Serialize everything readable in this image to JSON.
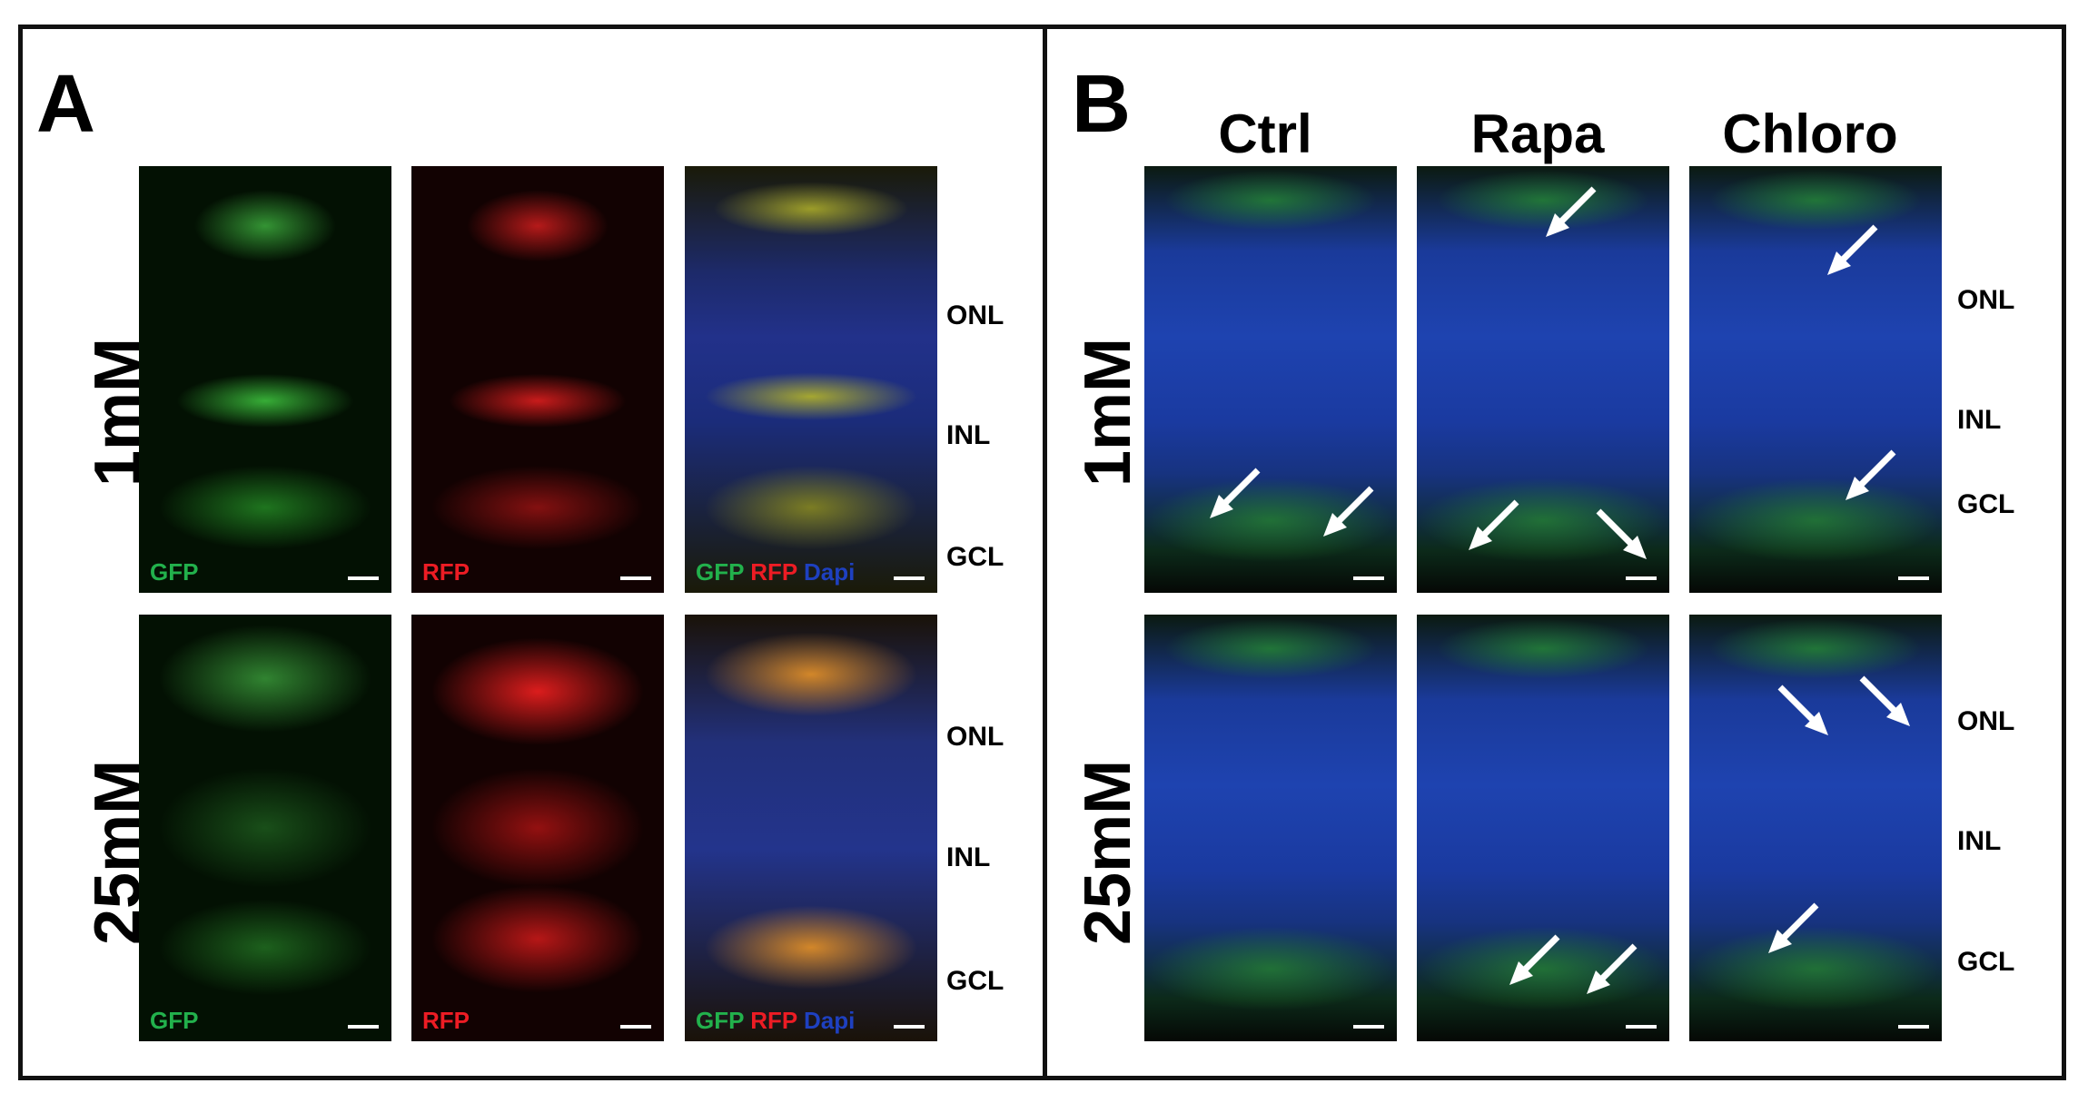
{
  "panel_a": {
    "letter": "A",
    "rows": [
      {
        "label": "1mM",
        "layers": [
          "ONL",
          "INL",
          "GCL"
        ]
      },
      {
        "label": "25mM",
        "layers": [
          "ONL",
          "INL",
          "GCL"
        ]
      }
    ],
    "channels": {
      "gfp": "GFP",
      "rfp": "RFP",
      "dapi": "Dapi"
    },
    "colors": {
      "gfp": "#22b14c",
      "rfp": "#ed1c24",
      "dapi": "#1e40c0"
    }
  },
  "panel_b": {
    "letter": "B",
    "columns": [
      "Ctrl",
      "Rapa",
      "Chloro"
    ],
    "rows": [
      {
        "label": "1mM",
        "layers": [
          "ONL",
          "INL",
          "GCL"
        ]
      },
      {
        "label": "25mM",
        "layers": [
          "ONL",
          "INL",
          "GCL"
        ]
      }
    ]
  }
}
